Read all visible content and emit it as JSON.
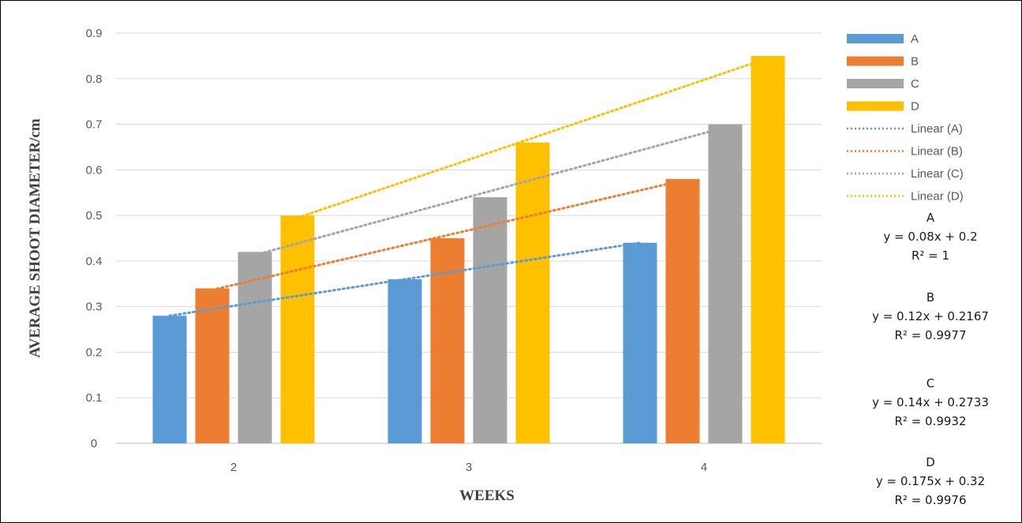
{
  "chart_data": {
    "type": "bar",
    "xlabel": "WEEKS",
    "ylabel": "AVERAGE SHOOT DIAMETER/cm",
    "categories": [
      "2",
      "3",
      "4"
    ],
    "ylim": [
      0,
      0.9
    ],
    "yticks": [
      "0",
      "0.1",
      "0.2",
      "0.3",
      "0.4",
      "0.5",
      "0.6",
      "0.7",
      "0.8",
      "0.9"
    ],
    "grid": true,
    "legend_position": "right",
    "series": [
      {
        "name": "A",
        "color": "#5b9bd5",
        "values": [
          0.28,
          0.36,
          0.44
        ]
      },
      {
        "name": "B",
        "color": "#ed7d31",
        "values": [
          0.34,
          0.45,
          0.58
        ]
      },
      {
        "name": "C",
        "color": "#a5a5a5",
        "values": [
          0.42,
          0.54,
          0.7
        ]
      },
      {
        "name": "D",
        "color": "#ffc000",
        "values": [
          0.5,
          0.66,
          0.85
        ]
      }
    ],
    "trendlines": [
      {
        "name": "Linear (A)",
        "series": "A",
        "color": "#5b9bd5",
        "slope": 0.08,
        "intercept": 0.2,
        "equation": "y = 0.08x + 0.2",
        "r2": "R² = 1"
      },
      {
        "name": "Linear (B)",
        "series": "B",
        "color": "#ed7d31",
        "slope": 0.12,
        "intercept": 0.2167,
        "equation": "y = 0.12x + 0.2167",
        "r2": "R² = 0.9977"
      },
      {
        "name": "Linear (C)",
        "series": "C",
        "color": "#a5a5a5",
        "slope": 0.14,
        "intercept": 0.2733,
        "equation": "y = 0.14x + 0.2733",
        "r2": "R² = 0.9932"
      },
      {
        "name": "Linear (D)",
        "series": "D",
        "color": "#ffc000",
        "slope": 0.175,
        "intercept": 0.32,
        "equation": "y = 0.175x + 0.32",
        "r2": "R² = 0.9976"
      }
    ]
  }
}
